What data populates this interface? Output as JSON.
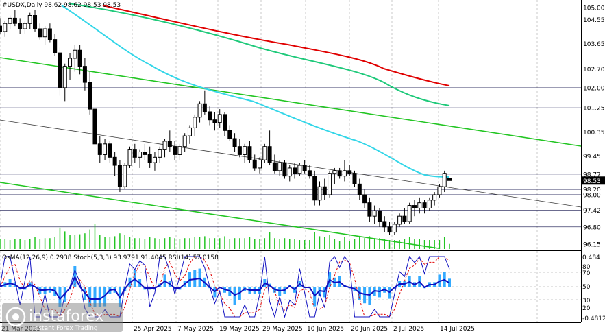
{
  "window": {
    "header": "#USDX,Daily 98.62 98.62 98.53 98.53",
    "sub_header": "OsMA(12,26,9) 0.2938  Stoch(5,3,3) 93.9791 91.4045  RSI(14) 57.0158"
  },
  "colors": {
    "ma_red": "#e00000",
    "ma_teal": "#1ec97a",
    "ma_cyan": "#33d6e8",
    "channel_green": "#22c522",
    "candle": "#000000",
    "volume": "#22c522",
    "osma": "#33aaff",
    "rsi": "#1010c0",
    "stoch_main": "#1010c0",
    "stoch_signal": "#e00000",
    "grid": "#c8c8c8",
    "level_line": "#3a3a6a"
  },
  "chart_data": {
    "type": "candlestick",
    "symbol": "#USDX",
    "timeframe": "Daily",
    "ohlc_header": {
      "open": 98.62,
      "high": 98.62,
      "low": 98.53,
      "close": 98.53
    },
    "ylim": [
      96.0,
      105.2
    ],
    "x_ticks": [
      "21 Mar 2025",
      "25 Apr 2025",
      "7 May 2025",
      "19 May 2025",
      "29 May 2025",
      "10 Jun 2025",
      "20 Jun 2025",
      "2 Jul 2025",
      "14 Jul 2025"
    ],
    "price_scale": [
      "105.00",
      "104.55",
      "103.65",
      "102.70",
      "102.00",
      "101.25",
      "100.35",
      "99.45",
      "98.77",
      "98.53",
      "98.20",
      "98.00",
      "97.42",
      "96.80",
      "96.15"
    ],
    "level_lines": [
      102.7,
      102.0,
      101.25,
      98.77,
      98.2,
      98.0,
      97.42,
      96.8
    ],
    "candles": [
      [
        104.3,
        104.6,
        104.0,
        104.1
      ],
      [
        104.1,
        104.5,
        103.9,
        104.4
      ],
      [
        104.4,
        104.7,
        104.2,
        104.6
      ],
      [
        104.6,
        104.9,
        104.3,
        104.4
      ],
      [
        104.4,
        104.6,
        104.0,
        104.2
      ],
      [
        104.2,
        104.5,
        104.0,
        104.4
      ],
      [
        104.4,
        104.8,
        104.2,
        104.7
      ],
      [
        104.7,
        104.9,
        104.1,
        104.2
      ],
      [
        104.2,
        104.4,
        103.8,
        103.9
      ],
      [
        103.9,
        104.3,
        103.6,
        104.2
      ],
      [
        104.2,
        104.4,
        103.7,
        103.8
      ],
      [
        103.8,
        104.0,
        103.2,
        103.3
      ],
      [
        103.3,
        103.5,
        101.7,
        102.0
      ],
      [
        102.0,
        102.9,
        101.5,
        102.8
      ],
      [
        102.8,
        103.3,
        102.3,
        103.1
      ],
      [
        103.1,
        103.6,
        102.6,
        103.4
      ],
      [
        103.4,
        103.6,
        102.5,
        102.8
      ],
      [
        102.8,
        103.1,
        101.9,
        102.2
      ],
      [
        102.2,
        102.6,
        101.0,
        101.2
      ],
      [
        101.2,
        101.5,
        99.3,
        99.9
      ],
      [
        99.9,
        100.2,
        99.2,
        99.5
      ],
      [
        99.5,
        100.1,
        99.3,
        99.9
      ],
      [
        99.9,
        100.0,
        99.2,
        99.4
      ],
      [
        99.4,
        99.6,
        98.7,
        99.1
      ],
      [
        99.1,
        99.3,
        98.1,
        98.3
      ],
      [
        98.3,
        99.2,
        98.2,
        99.1
      ],
      [
        99.1,
        99.8,
        99.0,
        99.7
      ],
      [
        99.7,
        99.9,
        99.2,
        99.4
      ],
      [
        99.4,
        99.7,
        99.0,
        99.6
      ],
      [
        99.6,
        99.9,
        99.3,
        99.5
      ],
      [
        99.5,
        99.8,
        99.0,
        99.2
      ],
      [
        99.2,
        99.6,
        98.9,
        99.4
      ],
      [
        99.4,
        99.8,
        99.2,
        99.7
      ],
      [
        99.7,
        100.1,
        99.4,
        100.0
      ],
      [
        100.0,
        100.4,
        99.6,
        99.8
      ],
      [
        99.8,
        100.0,
        99.3,
        99.5
      ],
      [
        99.5,
        99.9,
        99.3,
        99.8
      ],
      [
        99.8,
        100.3,
        99.6,
        100.2
      ],
      [
        100.2,
        100.6,
        99.9,
        100.5
      ],
      [
        100.5,
        101.0,
        100.2,
        100.9
      ],
      [
        100.9,
        101.5,
        100.7,
        101.4
      ],
      [
        101.4,
        101.9,
        101.0,
        101.1
      ],
      [
        101.1,
        101.3,
        100.6,
        100.8
      ],
      [
        100.8,
        101.1,
        100.4,
        100.7
      ],
      [
        100.7,
        101.2,
        100.5,
        101.0
      ],
      [
        101.0,
        101.1,
        100.2,
        100.4
      ],
      [
        100.4,
        100.6,
        100.0,
        100.1
      ],
      [
        100.1,
        100.3,
        99.6,
        99.8
      ],
      [
        99.8,
        100.1,
        99.4,
        99.5
      ],
      [
        99.5,
        99.9,
        99.2,
        99.8
      ],
      [
        99.8,
        100.0,
        99.2,
        99.3
      ],
      [
        99.3,
        99.5,
        98.9,
        99.0
      ],
      [
        99.0,
        99.4,
        98.8,
        99.3
      ],
      [
        99.3,
        99.9,
        99.2,
        99.8
      ],
      [
        99.8,
        100.4,
        99.1,
        99.2
      ],
      [
        99.2,
        99.5,
        98.8,
        98.9
      ],
      [
        98.9,
        99.3,
        98.7,
        99.2
      ],
      [
        99.2,
        99.3,
        98.6,
        98.7
      ],
      [
        98.7,
        99.1,
        98.5,
        99.0
      ],
      [
        99.0,
        99.2,
        98.6,
        98.8
      ],
      [
        98.8,
        99.2,
        98.7,
        99.1
      ],
      [
        99.1,
        99.3,
        98.8,
        98.9
      ],
      [
        98.9,
        99.1,
        98.6,
        98.7
      ],
      [
        98.7,
        98.9,
        97.6,
        97.8
      ],
      [
        97.8,
        98.5,
        97.6,
        98.3
      ],
      [
        98.3,
        98.6,
        97.8,
        98.0
      ],
      [
        98.0,
        98.9,
        97.9,
        98.8
      ],
      [
        98.8,
        99.0,
        98.4,
        98.9
      ],
      [
        98.9,
        99.0,
        98.6,
        98.7
      ],
      [
        98.7,
        99.3,
        98.5,
        98.9
      ],
      [
        98.9,
        99.1,
        98.7,
        98.8
      ],
      [
        98.8,
        98.9,
        98.3,
        98.4
      ],
      [
        98.4,
        98.6,
        97.8,
        98.0
      ],
      [
        98.0,
        98.2,
        97.5,
        97.7
      ],
      [
        97.7,
        97.9,
        97.0,
        97.2
      ],
      [
        97.2,
        97.6,
        96.9,
        97.4
      ],
      [
        97.4,
        97.5,
        96.8,
        97.0
      ],
      [
        97.0,
        97.2,
        96.6,
        96.8
      ],
      [
        96.8,
        97.0,
        96.5,
        96.6
      ],
      [
        96.6,
        97.0,
        96.5,
        96.9
      ],
      [
        96.9,
        97.3,
        96.8,
        97.2
      ],
      [
        97.2,
        97.5,
        96.9,
        97.0
      ],
      [
        97.0,
        97.7,
        96.9,
        97.6
      ],
      [
        97.6,
        97.8,
        97.2,
        97.5
      ],
      [
        97.5,
        97.9,
        97.3,
        97.7
      ],
      [
        97.7,
        97.8,
        97.3,
        97.5
      ],
      [
        97.5,
        97.9,
        97.4,
        97.8
      ],
      [
        97.8,
        98.1,
        97.6,
        98.0
      ],
      [
        98.0,
        98.4,
        97.9,
        98.3
      ],
      [
        98.3,
        98.9,
        98.1,
        98.8
      ],
      [
        98.62,
        98.62,
        98.53,
        98.53
      ]
    ]
  }
}
